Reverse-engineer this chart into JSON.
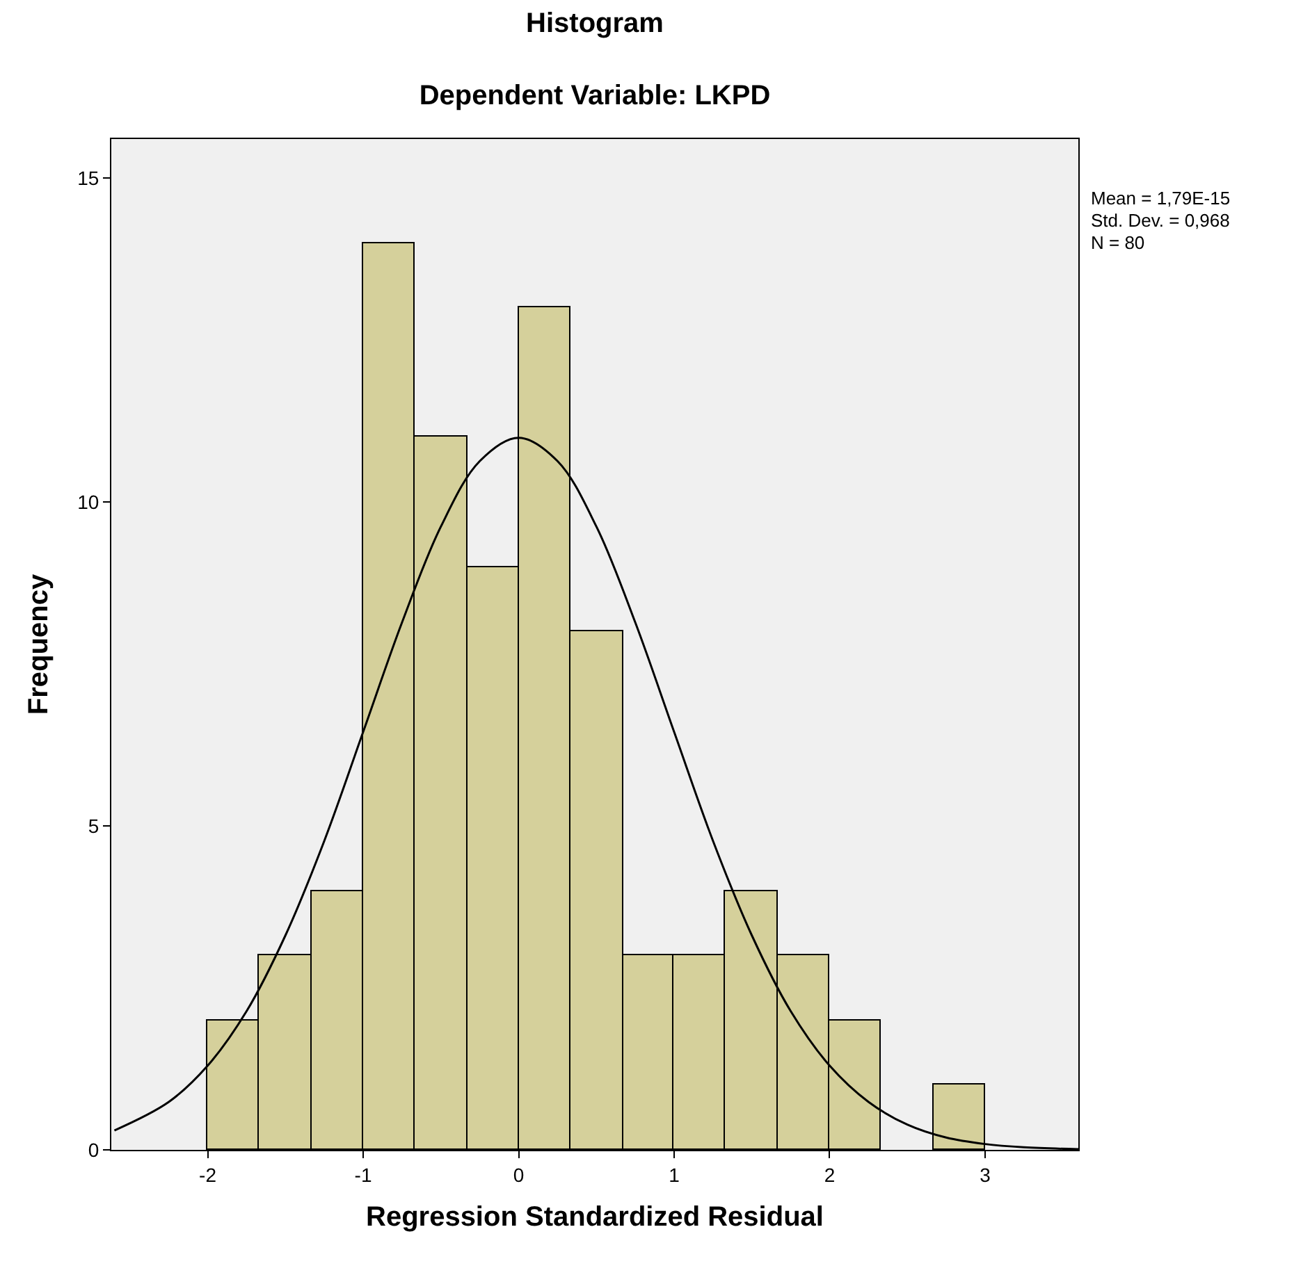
{
  "chart_data": {
    "type": "histogram",
    "title": "Histogram",
    "subtitle": "Dependent Variable: LKPD",
    "xlabel": "Regression Standardized Residual",
    "ylabel": "Frequency",
    "bins": [
      -2,
      -1.67,
      -1.33,
      -1,
      -0.67,
      -0.33,
      0,
      0.33,
      0.67,
      1,
      1.33,
      1.67,
      2,
      2.33,
      2.67,
      3
    ],
    "values": [
      2,
      3,
      4,
      14,
      11,
      9,
      13,
      8,
      3,
      3,
      4,
      3,
      2,
      0,
      1
    ],
    "color": "#d5d09b",
    "series": [
      {
        "type": "line",
        "color": "#000000",
        "x": [
          -2.6,
          -2.25,
          -2,
          -1.75,
          -1.5,
          -1.25,
          -1,
          -0.75,
          -0.5,
          -0.25,
          0,
          0.25,
          0.5,
          0.75,
          1,
          1.25,
          1.5,
          1.75,
          2,
          2.25,
          2.5,
          2.75,
          3,
          3.25,
          3.6
        ],
        "values": [
          0.3,
          0.74,
          1.3,
          2.14,
          3.31,
          4.77,
          6.45,
          8.14,
          9.62,
          10.63,
          10.99,
          10.63,
          9.62,
          8.14,
          6.45,
          4.77,
          3.31,
          2.14,
          1.3,
          0.74,
          0.39,
          0.19,
          0.09,
          0.04,
          0.01
        ]
      }
    ],
    "xlim": [
      -2.62,
      3.6
    ],
    "xticks": [
      -2,
      -1,
      0,
      1,
      2,
      3
    ],
    "ylim": [
      0,
      15.6
    ],
    "yticks": [
      0,
      5,
      10,
      15
    ],
    "grid": false,
    "legend": false,
    "annotations": [
      "Mean = 1,79E-15",
      "Std. Dev. = 0,968",
      "N = 80"
    ]
  }
}
